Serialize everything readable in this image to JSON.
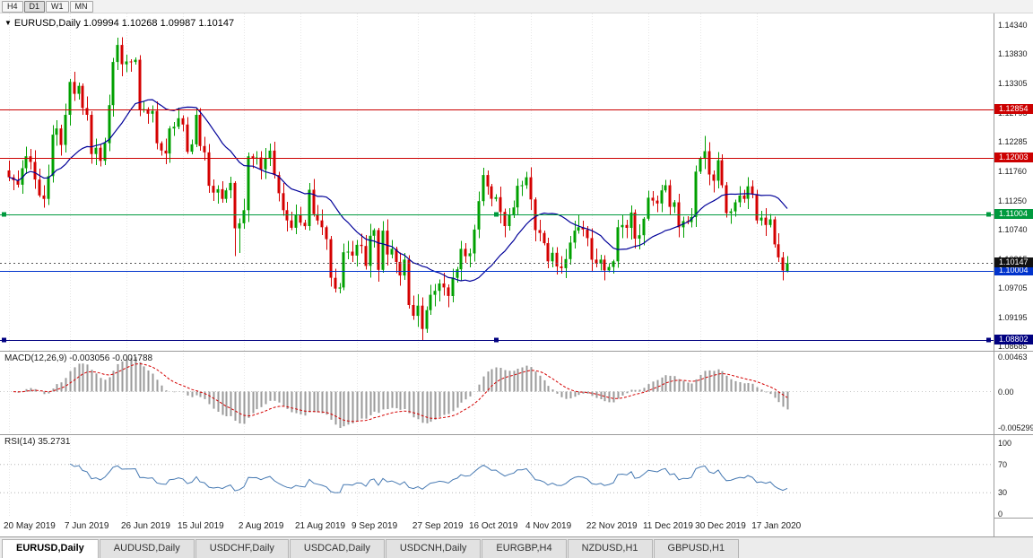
{
  "toolbar": {
    "timeframes": [
      "H4",
      "D1",
      "W1",
      "MN"
    ],
    "active": "D1"
  },
  "icons": {
    "symbol_dropdown": "▼"
  },
  "chart": {
    "title": "EURUSD,Daily 1.09994 1.10268 1.09987 1.10147"
  },
  "price_scale": {
    "ticks": [
      "1.14340",
      "1.13830",
      "1.13305",
      "1.12795",
      "1.12285",
      "1.11760",
      "1.11250",
      "1.10740",
      "1.10215",
      "1.09705",
      "1.09195",
      "1.08685"
    ]
  },
  "hlines": [
    {
      "price": 1.12854,
      "label": "1.12854",
      "color": "#cc0000",
      "handles": false
    },
    {
      "price": 1.12003,
      "label": "1.12003",
      "color": "#cc0000",
      "handles": false
    },
    {
      "price": 1.11004,
      "label": "1.11004",
      "color": "#009a3e",
      "handles": true
    },
    {
      "price": 1.10004,
      "label": "1.10004",
      "color": "#0033cc",
      "handles": false
    },
    {
      "price": 1.08802,
      "label": "1.08802",
      "color": "#000080",
      "handles": true
    }
  ],
  "current_price": {
    "value": 1.10147,
    "label": "1.10147",
    "color": "#111111"
  },
  "macd_panel": {
    "label": "MACD(12,26,9) -0.003056 -0.001788",
    "scale_max": "0.00463",
    "scale_zero": "0.00",
    "scale_min": "-0.005299"
  },
  "rsi_panel": {
    "label": "RSI(14) 35.2731",
    "scale": [
      100,
      70,
      30,
      0
    ],
    "levels": [
      70,
      30
    ]
  },
  "time_axis": [
    {
      "i": 0,
      "label": "20 May 2019"
    },
    {
      "i": 14,
      "label": "7 Jun 2019"
    },
    {
      "i": 27,
      "label": "26 Jun 2019"
    },
    {
      "i": 40,
      "label": "15 Jul 2019"
    },
    {
      "i": 54,
      "label": "2 Aug 2019"
    },
    {
      "i": 67,
      "label": "21 Aug 2019"
    },
    {
      "i": 80,
      "label": "9 Sep 2019"
    },
    {
      "i": 94,
      "label": "27 Sep 2019"
    },
    {
      "i": 107,
      "label": "16 Oct 2019"
    },
    {
      "i": 120,
      "label": "4 Nov 2019"
    },
    {
      "i": 134,
      "label": "22 Nov 2019"
    },
    {
      "i": 147,
      "label": "11 Dec 2019"
    },
    {
      "i": 159,
      "label": "30 Dec 2019"
    },
    {
      "i": 172,
      "label": "17 Jan 2020"
    }
  ],
  "tabs": [
    {
      "label": "EURUSD,Daily",
      "active": true
    },
    {
      "label": "AUDUSD,Daily",
      "active": false
    },
    {
      "label": "USDCHF,Daily",
      "active": false
    },
    {
      "label": "USDCAD,Daily",
      "active": false
    },
    {
      "label": "USDCNH,Daily",
      "active": false
    },
    {
      "label": "EURGBP,H4",
      "active": false
    },
    {
      "label": "NZDUSD,H1",
      "active": false
    },
    {
      "label": "GBPUSD,H1",
      "active": false
    }
  ],
  "chart_data": {
    "type": "candlestick",
    "symbol": "EURUSD",
    "timeframe": "Daily",
    "title": "EURUSD,Daily",
    "last_bar": {
      "open": 1.09994,
      "high": 1.10268,
      "low": 1.09987,
      "close": 1.10147
    },
    "price_axis_range": [
      1.08605,
      1.14545
    ],
    "levels": [
      1.12854,
      1.12003,
      1.11004,
      1.10004,
      1.08802
    ],
    "closes": [
      1.1166,
      1.1161,
      1.1153,
      1.1182,
      1.1203,
      1.1193,
      1.1162,
      1.1134,
      1.1128,
      1.1168,
      1.1241,
      1.1252,
      1.1223,
      1.1276,
      1.1334,
      1.1313,
      1.1327,
      1.1288,
      1.1276,
      1.1207,
      1.1218,
      1.1195,
      1.1226,
      1.1293,
      1.1369,
      1.1399,
      1.1365,
      1.137,
      1.1369,
      1.1373,
      1.1285,
      1.1286,
      1.1278,
      1.1283,
      1.1226,
      1.1213,
      1.1208,
      1.1252,
      1.1255,
      1.127,
      1.1259,
      1.1211,
      1.1224,
      1.1276,
      1.1221,
      1.121,
      1.1151,
      1.1139,
      1.1145,
      1.1128,
      1.1143,
      1.1156,
      1.1076,
      1.1085,
      1.1108,
      1.1203,
      1.12,
      1.1201,
      1.118,
      1.1199,
      1.1213,
      1.117,
      1.1138,
      1.1108,
      1.109,
      1.1077,
      1.1099,
      1.1086,
      1.108,
      1.1144,
      1.1101,
      1.109,
      1.1078,
      1.1057,
      1.0989,
      1.097,
      1.0972,
      1.1034,
      1.1035,
      1.1028,
      1.1047,
      1.1045,
      1.101,
      1.1063,
      1.1073,
      1.1003,
      1.1072,
      1.103,
      1.104,
      1.1017,
      1.0993,
      1.1021,
      1.0941,
      1.0922,
      1.094,
      1.0899,
      1.0932,
      1.0959,
      1.0966,
      1.0979,
      1.0972,
      1.0957,
      1.0989,
      1.1004,
      1.104,
      1.1027,
      1.1032,
      1.1074,
      1.1124,
      1.117,
      1.115,
      1.1128,
      1.1131,
      1.1105,
      1.108,
      1.1099,
      1.1113,
      1.1151,
      1.1152,
      1.1166,
      1.1127,
      1.1073,
      1.1068,
      1.105,
      1.1018,
      1.1033,
      1.1009,
      1.1006,
      1.1022,
      1.1051,
      1.1072,
      1.1078,
      1.1074,
      1.1059,
      1.1021,
      1.1014,
      1.1021,
      1.1002,
      1.1008,
      1.1018,
      1.1078,
      1.1082,
      1.1077,
      1.1104,
      1.1058,
      1.1064,
      1.1093,
      1.113,
      1.1125,
      1.112,
      1.1143,
      1.1152,
      1.1114,
      1.1122,
      1.1078,
      1.1089,
      1.1087,
      1.1096,
      1.1176,
      1.1199,
      1.1212,
      1.1171,
      1.116,
      1.1196,
      1.1152,
      1.1103,
      1.1106,
      1.1122,
      1.1134,
      1.1128,
      1.115,
      1.1136,
      1.109,
      1.1095,
      1.1082,
      1.1092,
      1.1048,
      1.1025,
      1.1002,
      1.10147
    ],
    "wick_overrides": {
      "25": {
        "high": 1.1412
      },
      "52": {
        "low": 1.1027
      },
      "53": {
        "low": 1.1033
      },
      "95": {
        "low": 1.0879
      },
      "160": {
        "high": 1.1239
      }
    },
    "colors": {
      "up": "#00a000",
      "down": "#d40000",
      "ma": "#000099",
      "rsi": "#4679b2",
      "macd_hist": "#9a9a9a",
      "macd_signal": "#d40000",
      "grid": "#e6e6e6"
    },
    "indicators": {
      "ma_period": 20,
      "macd": {
        "fast": 12,
        "slow": 26,
        "signal": 9,
        "value": -0.003056,
        "signal_value": -0.001788
      },
      "rsi": {
        "period": 14,
        "value": 35.2731
      }
    }
  }
}
